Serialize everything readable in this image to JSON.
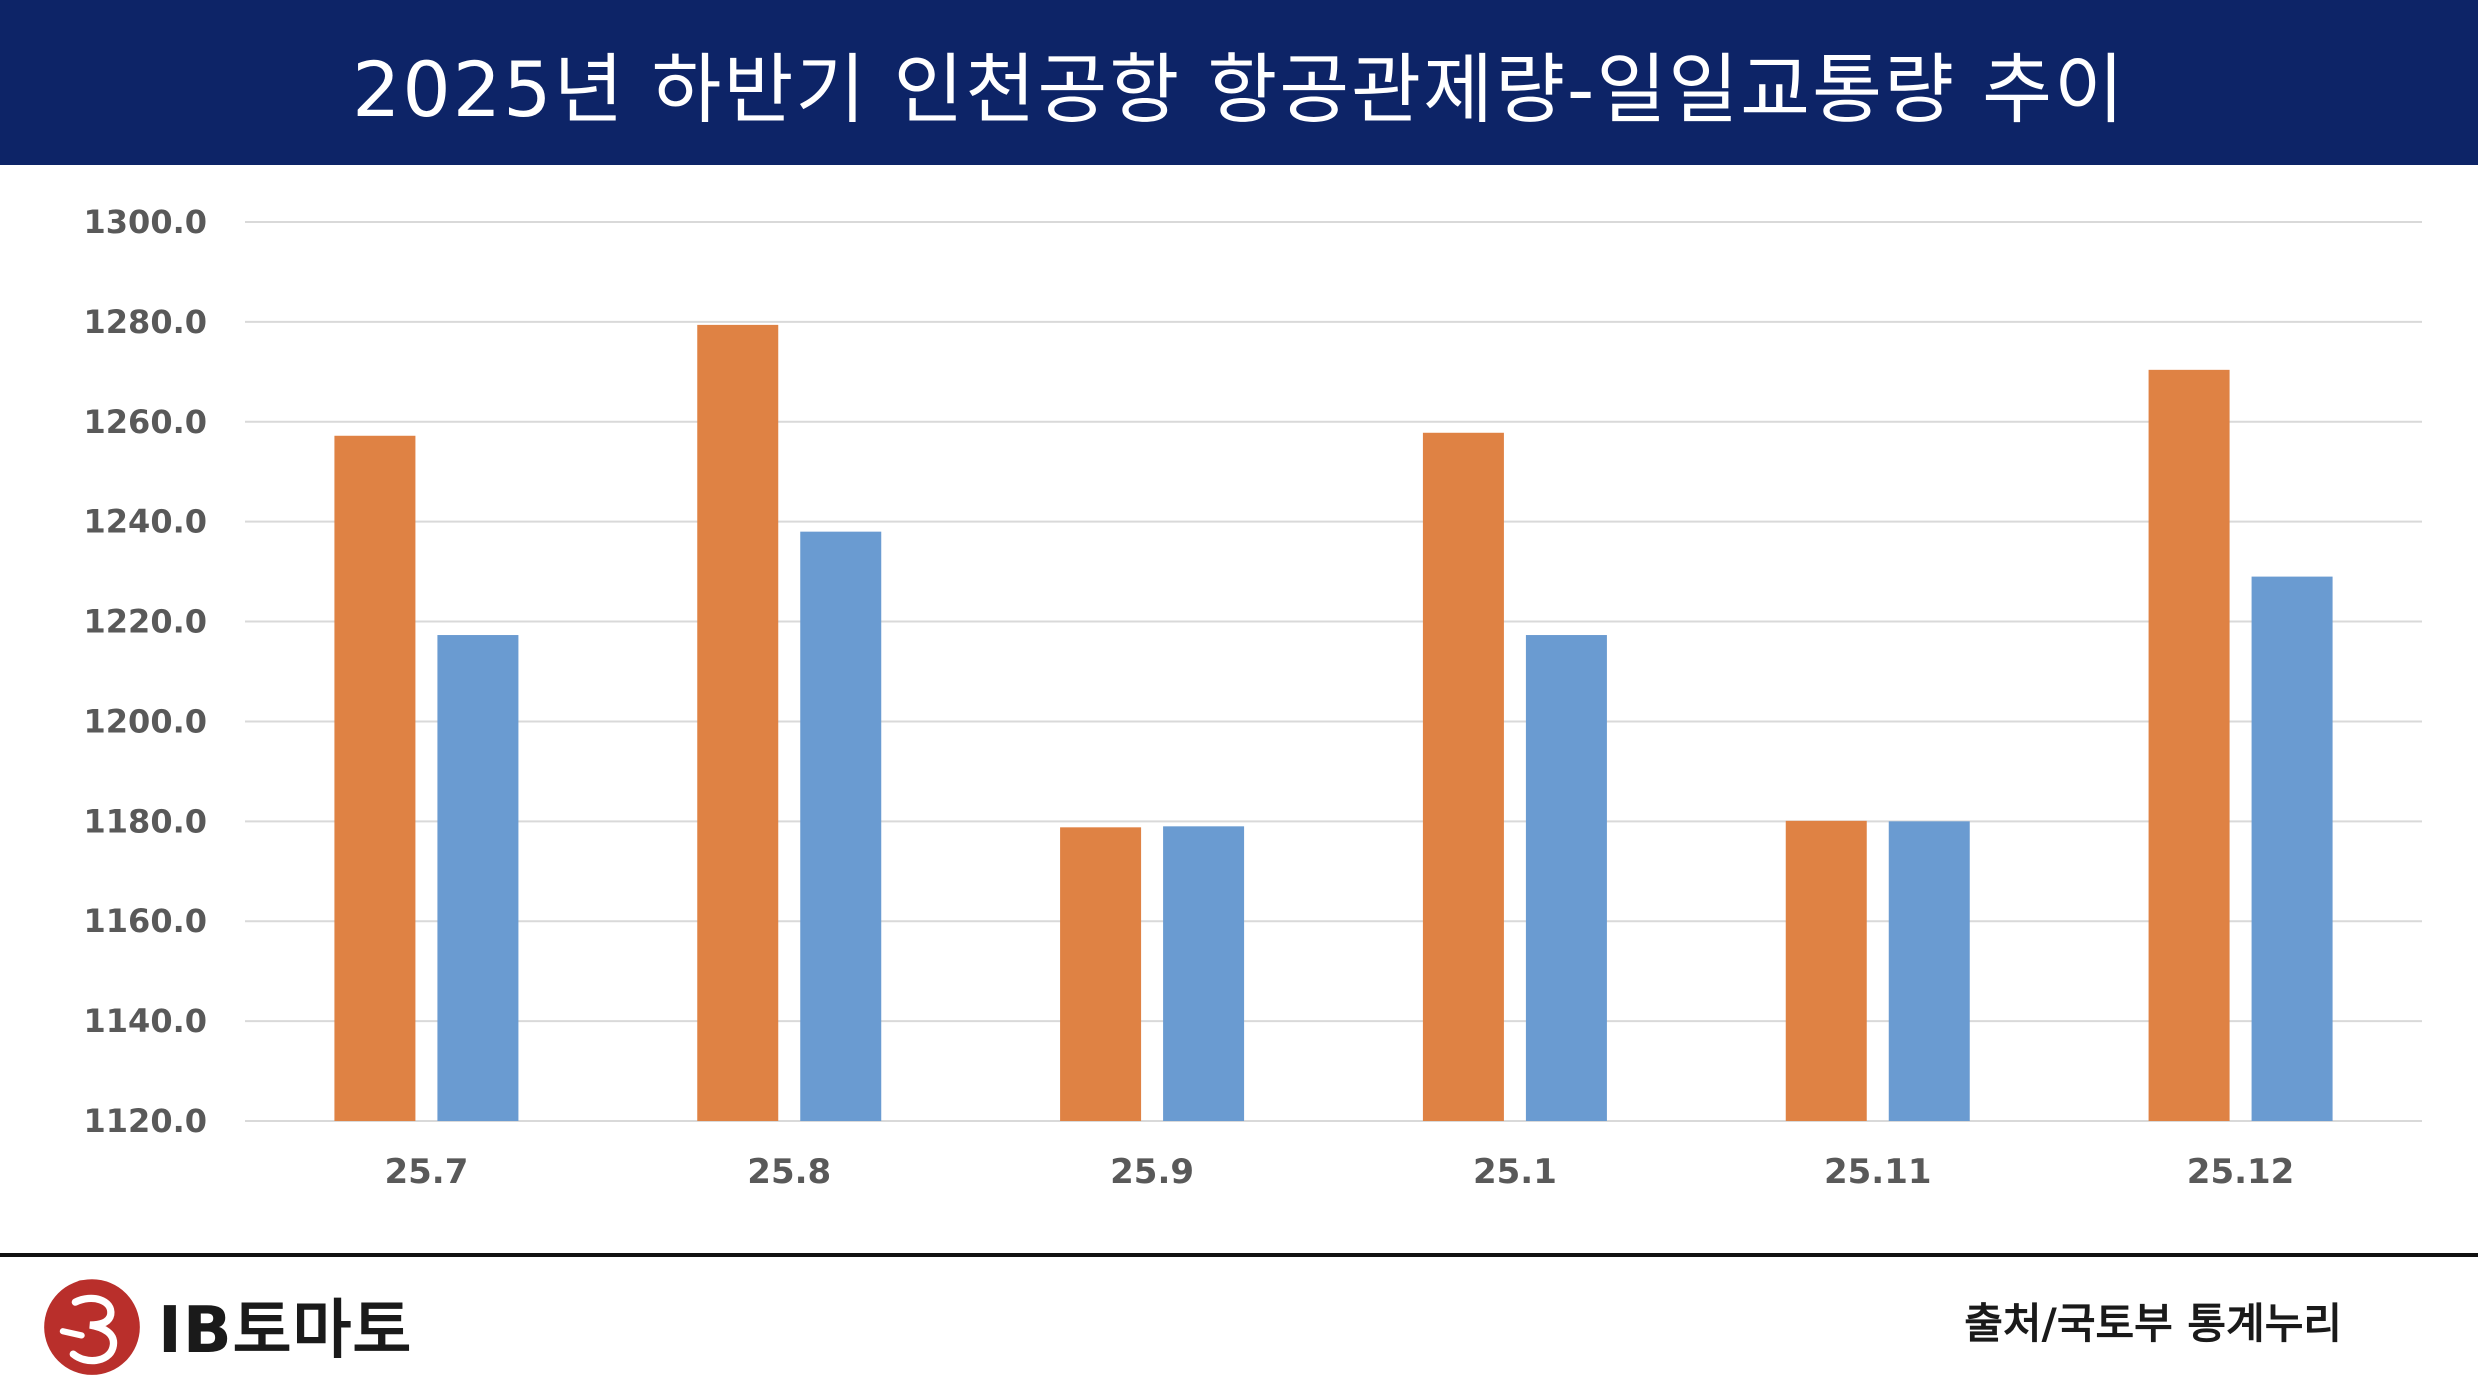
{
  "header": {
    "title": "2025년 하반기 인천공항 항공관제량-일일교통량 추이"
  },
  "colors": {
    "header_bg": "#0d2467",
    "series_1": "#df8244",
    "series_2": "#6a9bd1",
    "grid": "#d9d9d9",
    "logo_red": "#b92f2b"
  },
  "chart_data": {
    "type": "bar",
    "categories": [
      "25.7",
      "25.8",
      "25.9",
      "25.1",
      "25.11",
      "25.12"
    ],
    "series": [
      {
        "values": [
          1257.2,
          1279.4,
          1178.8,
          1257.8,
          1180.1,
          1270.4
        ]
      },
      {
        "values": [
          1217.3,
          1238.0,
          1179.0,
          1217.3,
          1180.0,
          1229.0
        ]
      }
    ],
    "ylim": [
      1120,
      1300
    ],
    "yticks": [
      "1120.0",
      "1140.0",
      "1160.0",
      "1180.0",
      "1200.0",
      "1220.0",
      "1240.0",
      "1260.0",
      "1280.0",
      "1300.0"
    ],
    "title": "",
    "xlabel": "",
    "ylabel": "",
    "grid": true
  },
  "footer": {
    "logo_text": "IB토마토",
    "source": "출처/국토부 통계누리"
  }
}
